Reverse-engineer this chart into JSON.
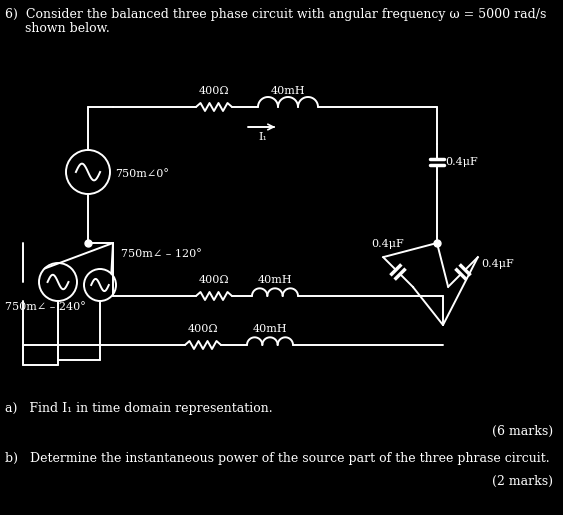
{
  "background_color": "#000000",
  "text_color": "#ffffff",
  "line_color": "#ffffff",
  "title_line1": "6)  Consider the balanced three phase circuit with angular frequency ω = 5000 rad/s",
  "title_line2": "     shown below.",
  "question_a": "a)   Find I₁ in time domain representation.",
  "marks_a": "(6 marks)",
  "question_b": "b)   Determine the instantaneous power of the source part of the three phrase circuit.",
  "marks_b": "(2 marks)",
  "source1_label": "750m∠0°",
  "source2_label": "750m∠ – 120°",
  "source3_label": "750m∠ – 240°",
  "R1_label": "400Ω",
  "R2_label": "400Ω",
  "R3_label": "400Ω",
  "L1_label": "40mH",
  "L2_label": "40mH",
  "L3_label": "40mH",
  "C1_label": "0.4μF",
  "C2_label": "0.4μF",
  "C3_label": "0.4μF",
  "I1_label": "I₁",
  "font_size_title": 9.0,
  "font_size_label": 8.0,
  "font_size_marks": 9.0
}
